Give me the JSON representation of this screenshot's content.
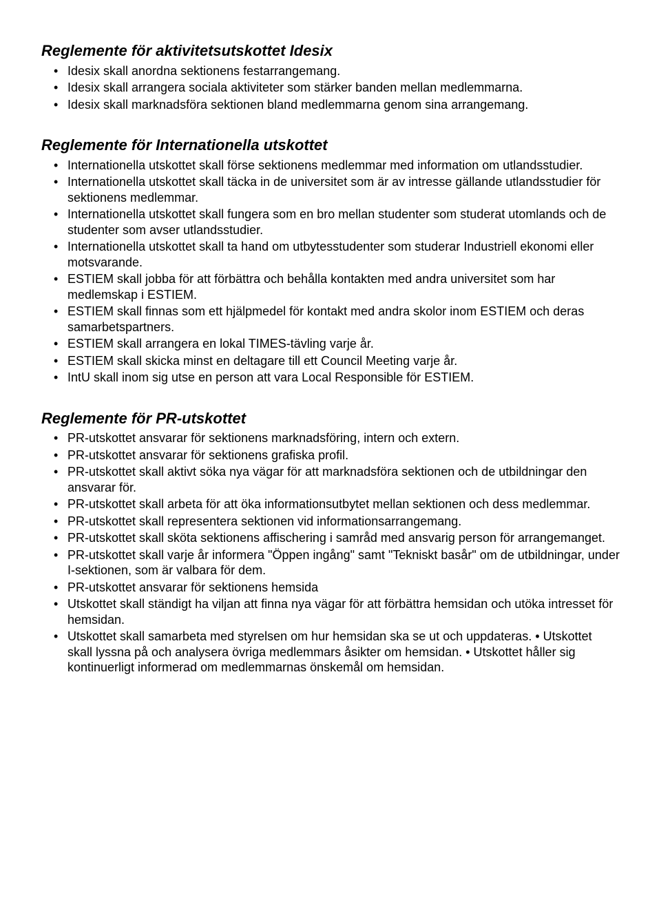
{
  "sections": [
    {
      "heading": "Reglemente för aktivitetsutskottet Idesix",
      "items": [
        "Idesix skall anordna sektionens festarrangemang.",
        "Idesix skall arrangera sociala aktiviteter som stärker banden mellan medlemmarna.",
        "Idesix skall marknadsföra sektionen bland medlemmarna genom sina arrangemang."
      ]
    },
    {
      "heading": "Reglemente för Internationella utskottet",
      "items": [
        "Internationella utskottet skall förse sektionens medlemmar med information om utlandsstudier.",
        "Internationella utskottet skall täcka in de universitet som är av intresse gällande utlandsstudier för sektionens medlemmar.",
        "Internationella utskottet skall fungera som en bro mellan studenter som studerat utomlands och de studenter som avser utlandsstudier.",
        "Internationella utskottet skall ta hand om utbytesstudenter som studerar Industriell ekonomi eller motsvarande.",
        "ESTIEM skall jobba för att förbättra och behålla kontakten med andra universitet som har medlemskap i ESTIEM.",
        "ESTIEM skall finnas som ett hjälpmedel för kontakt med andra skolor inom ESTIEM och deras samarbetspartners.",
        "ESTIEM skall arrangera en lokal TIMES-tävling varje år.",
        "ESTIEM skall skicka minst en deltagare till ett Council Meeting varje år.",
        "IntU skall inom sig utse en person att vara Local Responsible för ESTIEM."
      ]
    },
    {
      "heading": "Reglemente för PR-utskottet",
      "items": [
        "PR-utskottet ansvarar för sektionens marknadsföring, intern och extern.",
        "PR-utskottet ansvarar för sektionens grafiska profil.",
        "PR-utskottet skall aktivt söka nya vägar för att marknadsföra sektionen och de utbildningar den ansvarar för.",
        "PR-utskottet skall arbeta för att öka informationsutbytet mellan sektionen och dess medlemmar.",
        "PR-utskottet skall representera sektionen vid informationsarrangemang.",
        "PR-utskottet skall sköta sektionens affischering i samråd med ansvarig person för arrangemanget.",
        "PR-utskottet skall varje år informera \"Öppen ingång\" samt \"Tekniskt basår\" om de utbildningar, under I-sektionen, som är valbara för dem.",
        "PR-utskottet ansvarar för sektionens hemsida",
        "Utskottet skall ständigt ha viljan att finna nya vägar för att förbättra hemsidan och utöka intresset för hemsidan.",
        "Utskottet skall samarbeta med styrelsen om hur hemsidan ska se ut och uppdateras. • Utskottet skall lyssna på och analysera övriga medlemmars åsikter om hemsidan. • Utskottet håller sig kontinuerligt informerad om medlemmarnas önskemål om hemsidan."
      ]
    }
  ]
}
